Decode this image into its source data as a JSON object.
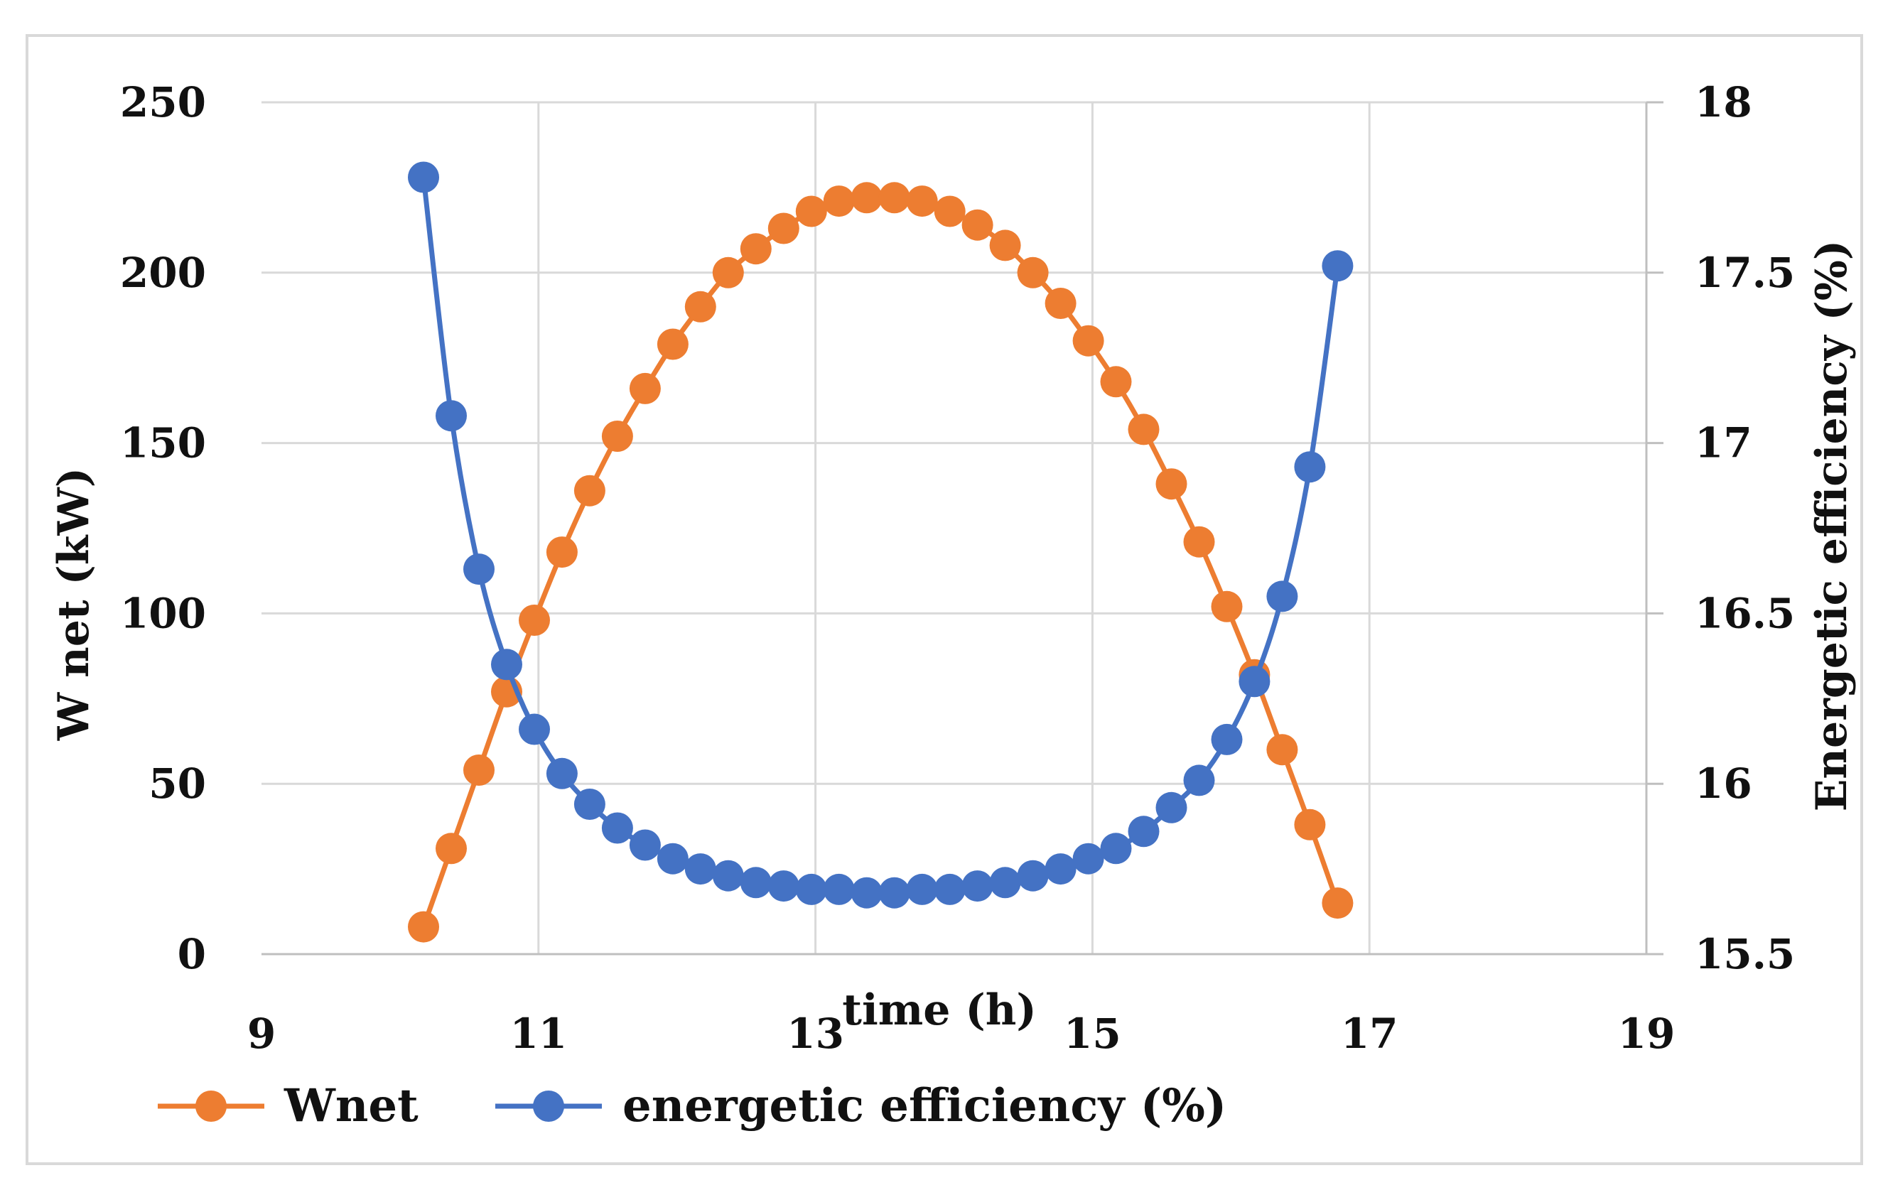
{
  "chart_data": {
    "type": "line",
    "title": "",
    "xlabel": "time (h)",
    "ylabel": "W net (kW)",
    "y2label": "Energetic efficiency (%)",
    "xlim": [
      9,
      19
    ],
    "ylim": [
      0,
      250
    ],
    "y2lim": [
      15.5,
      18
    ],
    "x_ticks": [
      "9",
      "11",
      "13",
      "15",
      "17",
      "19"
    ],
    "y_ticks": [
      "0",
      "50",
      "100",
      "150",
      "200",
      "250"
    ],
    "y2_ticks": [
      "15.5",
      "16",
      "16.5",
      "17",
      "17.5",
      "18"
    ],
    "grid": true,
    "legend_position": "bottom",
    "series": [
      {
        "name": "Wnet",
        "axis": "left",
        "color": "#ED7D31",
        "x": [
          10.17,
          10.37,
          10.57,
          10.77,
          10.97,
          11.17,
          11.37,
          11.57,
          11.77,
          11.97,
          12.17,
          12.37,
          12.57,
          12.77,
          12.97,
          13.17,
          13.37,
          13.57,
          13.77,
          13.97,
          14.17,
          14.37,
          14.57,
          14.77,
          14.97,
          15.17,
          15.37,
          15.57,
          15.77,
          15.97,
          16.17,
          16.37,
          16.57,
          16.77
        ],
        "values": [
          8,
          31,
          54,
          77,
          98,
          118,
          136,
          152,
          166,
          179,
          190,
          200,
          207,
          213,
          218,
          221,
          222,
          222,
          221,
          218,
          214,
          208,
          200,
          191,
          180,
          168,
          154,
          138,
          121,
          102,
          82,
          60,
          38,
          15
        ]
      },
      {
        "name": "energetic efficiency (%)",
        "axis": "right",
        "color": "#4472C4",
        "x": [
          10.17,
          10.37,
          10.57,
          10.77,
          10.97,
          11.17,
          11.37,
          11.57,
          11.77,
          11.97,
          12.17,
          12.37,
          12.57,
          12.77,
          12.97,
          13.17,
          13.37,
          13.57,
          13.77,
          13.97,
          14.17,
          14.37,
          14.57,
          14.77,
          14.97,
          15.17,
          15.37,
          15.57,
          15.77,
          15.97,
          16.17,
          16.37,
          16.57,
          16.77
        ],
        "values": [
          17.78,
          17.08,
          16.63,
          16.35,
          16.16,
          16.03,
          15.94,
          15.87,
          15.82,
          15.78,
          15.75,
          15.73,
          15.71,
          15.7,
          15.69,
          15.69,
          15.68,
          15.68,
          15.69,
          15.69,
          15.7,
          15.71,
          15.73,
          15.75,
          15.78,
          15.81,
          15.86,
          15.93,
          16.01,
          16.13,
          16.3,
          16.55,
          16.93,
          17.52
        ]
      }
    ]
  }
}
